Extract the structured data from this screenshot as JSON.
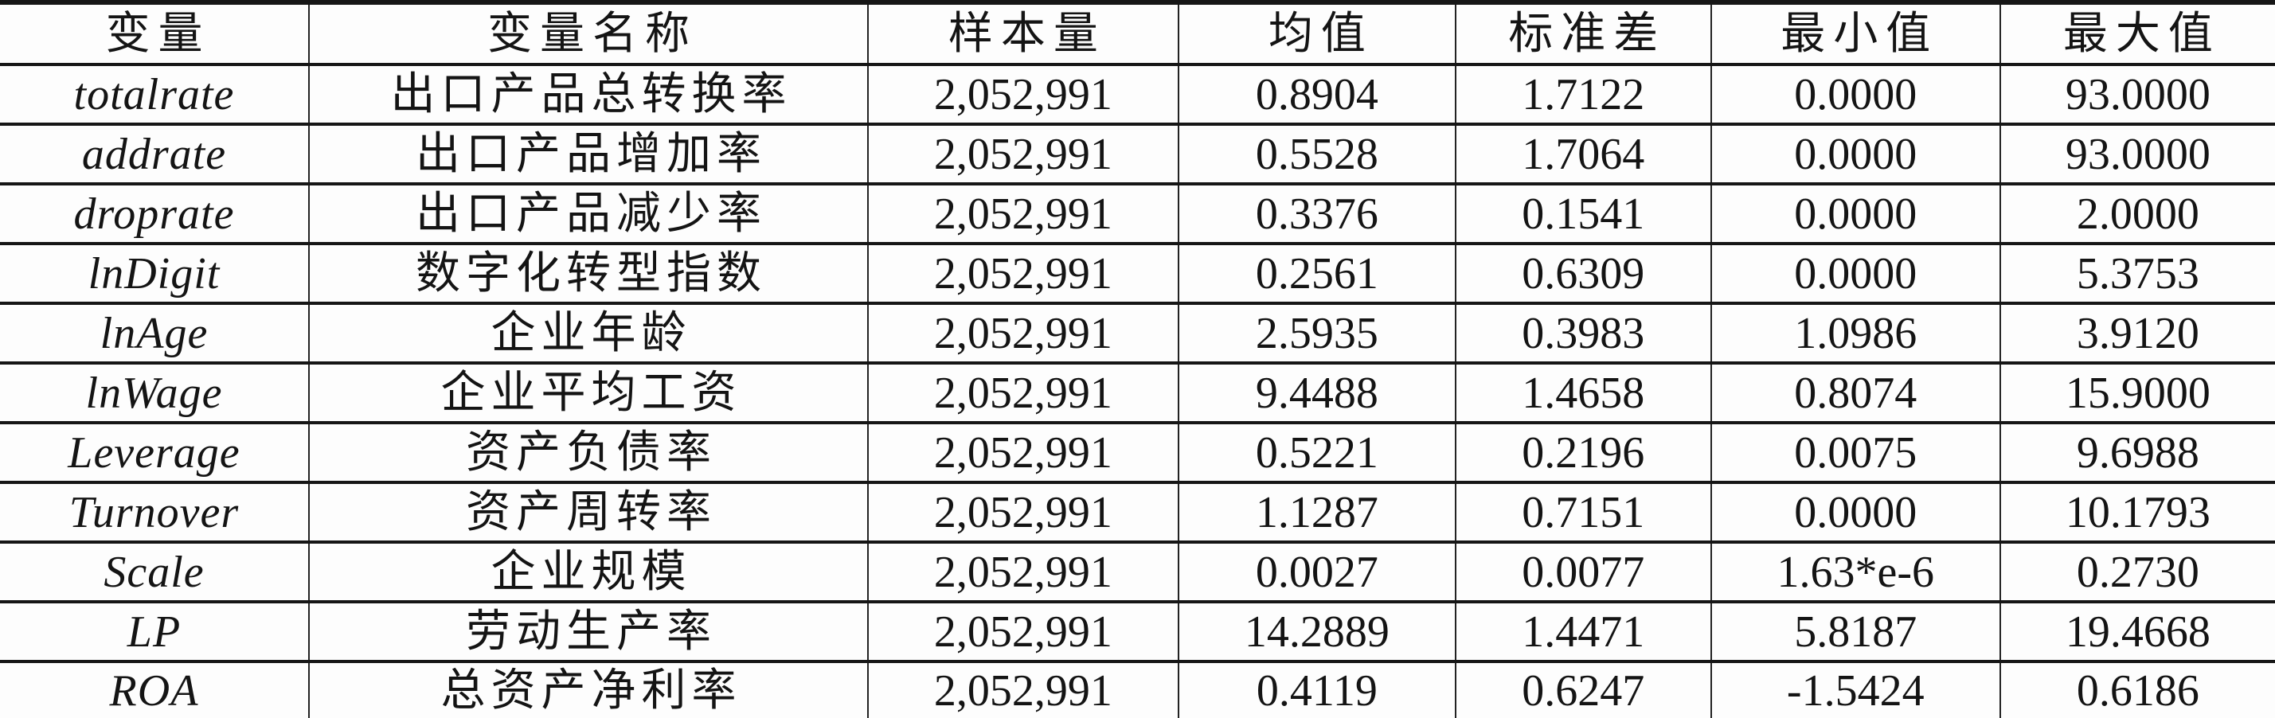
{
  "table": {
    "headers": [
      {
        "key": "variable",
        "label": "变量"
      },
      {
        "key": "name",
        "label": "变量名称"
      },
      {
        "key": "n",
        "label": "样本量"
      },
      {
        "key": "mean",
        "label": "均值"
      },
      {
        "key": "sd",
        "label": "标准差"
      },
      {
        "key": "min",
        "label": "最小值"
      },
      {
        "key": "max",
        "label": "最大值"
      }
    ],
    "rows": [
      {
        "variable": "totalrate",
        "name": "出口产品总转换率",
        "n": "2,052,991",
        "mean": "0.8904",
        "sd": "1.7122",
        "min": "0.0000",
        "max": "93.0000"
      },
      {
        "variable": "addrate",
        "name": "出口产品增加率",
        "n": "2,052,991",
        "mean": "0.5528",
        "sd": "1.7064",
        "min": "0.0000",
        "max": "93.0000"
      },
      {
        "variable": "droprate",
        "name": "出口产品减少率",
        "n": "2,052,991",
        "mean": "0.3376",
        "sd": "0.1541",
        "min": "0.0000",
        "max": "2.0000"
      },
      {
        "variable": "lnDigit",
        "name": "数字化转型指数",
        "n": "2,052,991",
        "mean": "0.2561",
        "sd": "0.6309",
        "min": "0.0000",
        "max": "5.3753"
      },
      {
        "variable": "lnAge",
        "name": "企业年龄",
        "n": "2,052,991",
        "mean": "2.5935",
        "sd": "0.3983",
        "min": "1.0986",
        "max": "3.9120"
      },
      {
        "variable": "lnWage",
        "name": "企业平均工资",
        "n": "2,052,991",
        "mean": "9.4488",
        "sd": "1.4658",
        "min": "0.8074",
        "max": "15.9000"
      },
      {
        "variable": "Leverage",
        "name": "资产负债率",
        "n": "2,052,991",
        "mean": "0.5221",
        "sd": "0.2196",
        "min": "0.0075",
        "max": "9.6988"
      },
      {
        "variable": "Turnover",
        "name": "资产周转率",
        "n": "2,052,991",
        "mean": "1.1287",
        "sd": "0.7151",
        "min": "0.0000",
        "max": "10.1793"
      },
      {
        "variable": "Scale",
        "name": "企业规模",
        "n": "2,052,991",
        "mean": "0.0027",
        "sd": "0.0077",
        "min": "1.63*e-6",
        "max": "0.2730"
      },
      {
        "variable": "LP",
        "name": "劳动生产率",
        "n": "2,052,991",
        "mean": "14.2889",
        "sd": "1.4471",
        "min": "5.8187",
        "max": "19.4668"
      },
      {
        "variable": "ROA",
        "name": "总资产净利率",
        "n": "2,052,991",
        "mean": "0.4119",
        "sd": "0.6247",
        "min": "-1.5424",
        "max": "0.6186"
      }
    ]
  }
}
